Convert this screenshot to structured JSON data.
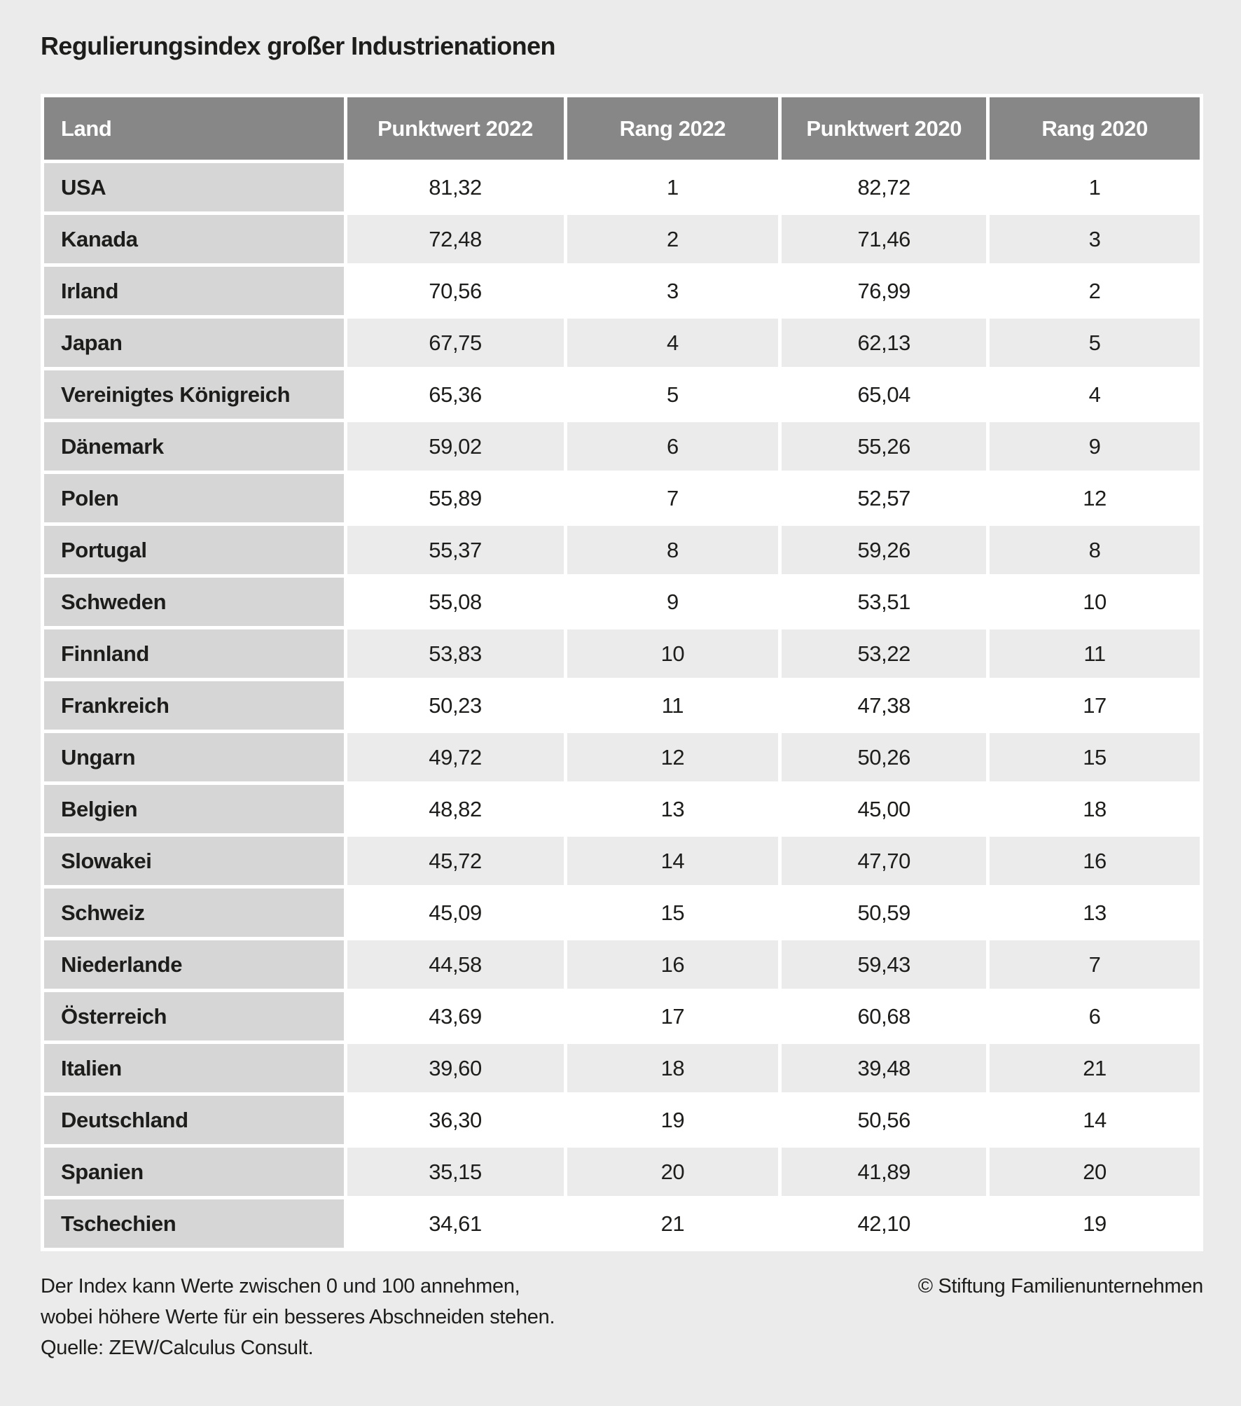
{
  "title": "Regulierungsindex großer Industrienationen",
  "table": {
    "columns": [
      {
        "key": "land",
        "label": "Land"
      },
      {
        "key": "punktwert_2022",
        "label": "Punktwert 2022"
      },
      {
        "key": "rang_2022",
        "label": "Rang 2022"
      },
      {
        "key": "punktwert_2020",
        "label": "Punktwert 2020"
      },
      {
        "key": "rang_2020",
        "label": "Rang 2020"
      }
    ],
    "rows": [
      {
        "land": "USA",
        "punktwert_2022": "81,32",
        "rang_2022": "1",
        "punktwert_2020": "82,72",
        "rang_2020": "1"
      },
      {
        "land": "Kanada",
        "punktwert_2022": "72,48",
        "rang_2022": "2",
        "punktwert_2020": "71,46",
        "rang_2020": "3"
      },
      {
        "land": "Irland",
        "punktwert_2022": "70,56",
        "rang_2022": "3",
        "punktwert_2020": "76,99",
        "rang_2020": "2"
      },
      {
        "land": "Japan",
        "punktwert_2022": "67,75",
        "rang_2022": "4",
        "punktwert_2020": "62,13",
        "rang_2020": "5"
      },
      {
        "land": "Vereinigtes Königreich",
        "punktwert_2022": "65,36",
        "rang_2022": "5",
        "punktwert_2020": "65,04",
        "rang_2020": "4"
      },
      {
        "land": "Dänemark",
        "punktwert_2022": "59,02",
        "rang_2022": "6",
        "punktwert_2020": "55,26",
        "rang_2020": "9"
      },
      {
        "land": "Polen",
        "punktwert_2022": "55,89",
        "rang_2022": "7",
        "punktwert_2020": "52,57",
        "rang_2020": "12"
      },
      {
        "land": "Portugal",
        "punktwert_2022": "55,37",
        "rang_2022": "8",
        "punktwert_2020": "59,26",
        "rang_2020": "8"
      },
      {
        "land": "Schweden",
        "punktwert_2022": "55,08",
        "rang_2022": "9",
        "punktwert_2020": "53,51",
        "rang_2020": "10"
      },
      {
        "land": "Finnland",
        "punktwert_2022": "53,83",
        "rang_2022": "10",
        "punktwert_2020": "53,22",
        "rang_2020": "11"
      },
      {
        "land": "Frankreich",
        "punktwert_2022": "50,23",
        "rang_2022": "11",
        "punktwert_2020": "47,38",
        "rang_2020": "17"
      },
      {
        "land": "Ungarn",
        "punktwert_2022": "49,72",
        "rang_2022": "12",
        "punktwert_2020": "50,26",
        "rang_2020": "15"
      },
      {
        "land": "Belgien",
        "punktwert_2022": "48,82",
        "rang_2022": "13",
        "punktwert_2020": "45,00",
        "rang_2020": "18"
      },
      {
        "land": "Slowakei",
        "punktwert_2022": "45,72",
        "rang_2022": "14",
        "punktwert_2020": "47,70",
        "rang_2020": "16"
      },
      {
        "land": "Schweiz",
        "punktwert_2022": "45,09",
        "rang_2022": "15",
        "punktwert_2020": "50,59",
        "rang_2020": "13"
      },
      {
        "land": "Niederlande",
        "punktwert_2022": "44,58",
        "rang_2022": "16",
        "punktwert_2020": "59,43",
        "rang_2020": "7"
      },
      {
        "land": "Österreich",
        "punktwert_2022": "43,69",
        "rang_2022": "17",
        "punktwert_2020": "60,68",
        "rang_2020": "6"
      },
      {
        "land": "Italien",
        "punktwert_2022": "39,60",
        "rang_2022": "18",
        "punktwert_2020": "39,48",
        "rang_2020": "21"
      },
      {
        "land": "Deutschland",
        "punktwert_2022": "36,30",
        "rang_2022": "19",
        "punktwert_2020": "50,56",
        "rang_2020": "14"
      },
      {
        "land": "Spanien",
        "punktwert_2022": "35,15",
        "rang_2022": "20",
        "punktwert_2020": "41,89",
        "rang_2020": "20"
      },
      {
        "land": "Tschechien",
        "punktwert_2022": "34,61",
        "rang_2022": "21",
        "punktwert_2020": "42,10",
        "rang_2020": "19"
      }
    ]
  },
  "footer": {
    "note_line1": "Der Index kann Werte zwischen 0 und 100 annehmen,",
    "note_line2": "wobei höhere Werte für ein besseres Abschneiden stehen.",
    "source": "Quelle: ZEW/Calculus Consult.",
    "copyright": "© Stiftung Familienunternehmen"
  },
  "colors": {
    "page_background": "#ebebeb",
    "header_background": "#878787",
    "header_text": "#ffffff",
    "land_cell_background": "#d6d6d6",
    "row_odd_background": "#ffffff",
    "row_even_background": "#ebebeb",
    "gap_color": "#ffffff",
    "text": "#1d1d1b"
  },
  "chart_data": {
    "type": "table",
    "title": "Regulierungsindex großer Industrienationen",
    "columns": [
      "Land",
      "Punktwert 2022",
      "Rang 2022",
      "Punktwert 2020",
      "Rang 2020"
    ],
    "rows": [
      [
        "USA",
        81.32,
        1,
        82.72,
        1
      ],
      [
        "Kanada",
        72.48,
        2,
        71.46,
        3
      ],
      [
        "Irland",
        70.56,
        3,
        76.99,
        2
      ],
      [
        "Japan",
        67.75,
        4,
        62.13,
        5
      ],
      [
        "Vereinigtes Königreich",
        65.36,
        5,
        65.04,
        4
      ],
      [
        "Dänemark",
        59.02,
        6,
        55.26,
        9
      ],
      [
        "Polen",
        55.89,
        7,
        52.57,
        12
      ],
      [
        "Portugal",
        55.37,
        8,
        59.26,
        8
      ],
      [
        "Schweden",
        55.08,
        9,
        53.51,
        10
      ],
      [
        "Finnland",
        53.83,
        10,
        53.22,
        11
      ],
      [
        "Frankreich",
        50.23,
        11,
        47.38,
        17
      ],
      [
        "Ungarn",
        49.72,
        12,
        50.26,
        15
      ],
      [
        "Belgien",
        48.82,
        13,
        45.0,
        18
      ],
      [
        "Slowakei",
        45.72,
        14,
        47.7,
        16
      ],
      [
        "Schweiz",
        45.09,
        15,
        50.59,
        13
      ],
      [
        "Niederlande",
        44.58,
        16,
        59.43,
        7
      ],
      [
        "Österreich",
        43.69,
        17,
        60.68,
        6
      ],
      [
        "Italien",
        39.6,
        18,
        39.48,
        21
      ],
      [
        "Deutschland",
        36.3,
        19,
        50.56,
        14
      ],
      [
        "Spanien",
        35.15,
        20,
        41.89,
        20
      ],
      [
        "Tschechien",
        34.61,
        21,
        42.1,
        19
      ]
    ],
    "value_range": [
      0,
      100
    ],
    "number_format": "de-DE (decimal comma)",
    "note": "Der Index kann Werte zwischen 0 und 100 annehmen, wobei höhere Werte für ein besseres Abschneiden stehen.",
    "source": "ZEW/Calculus Consult"
  }
}
